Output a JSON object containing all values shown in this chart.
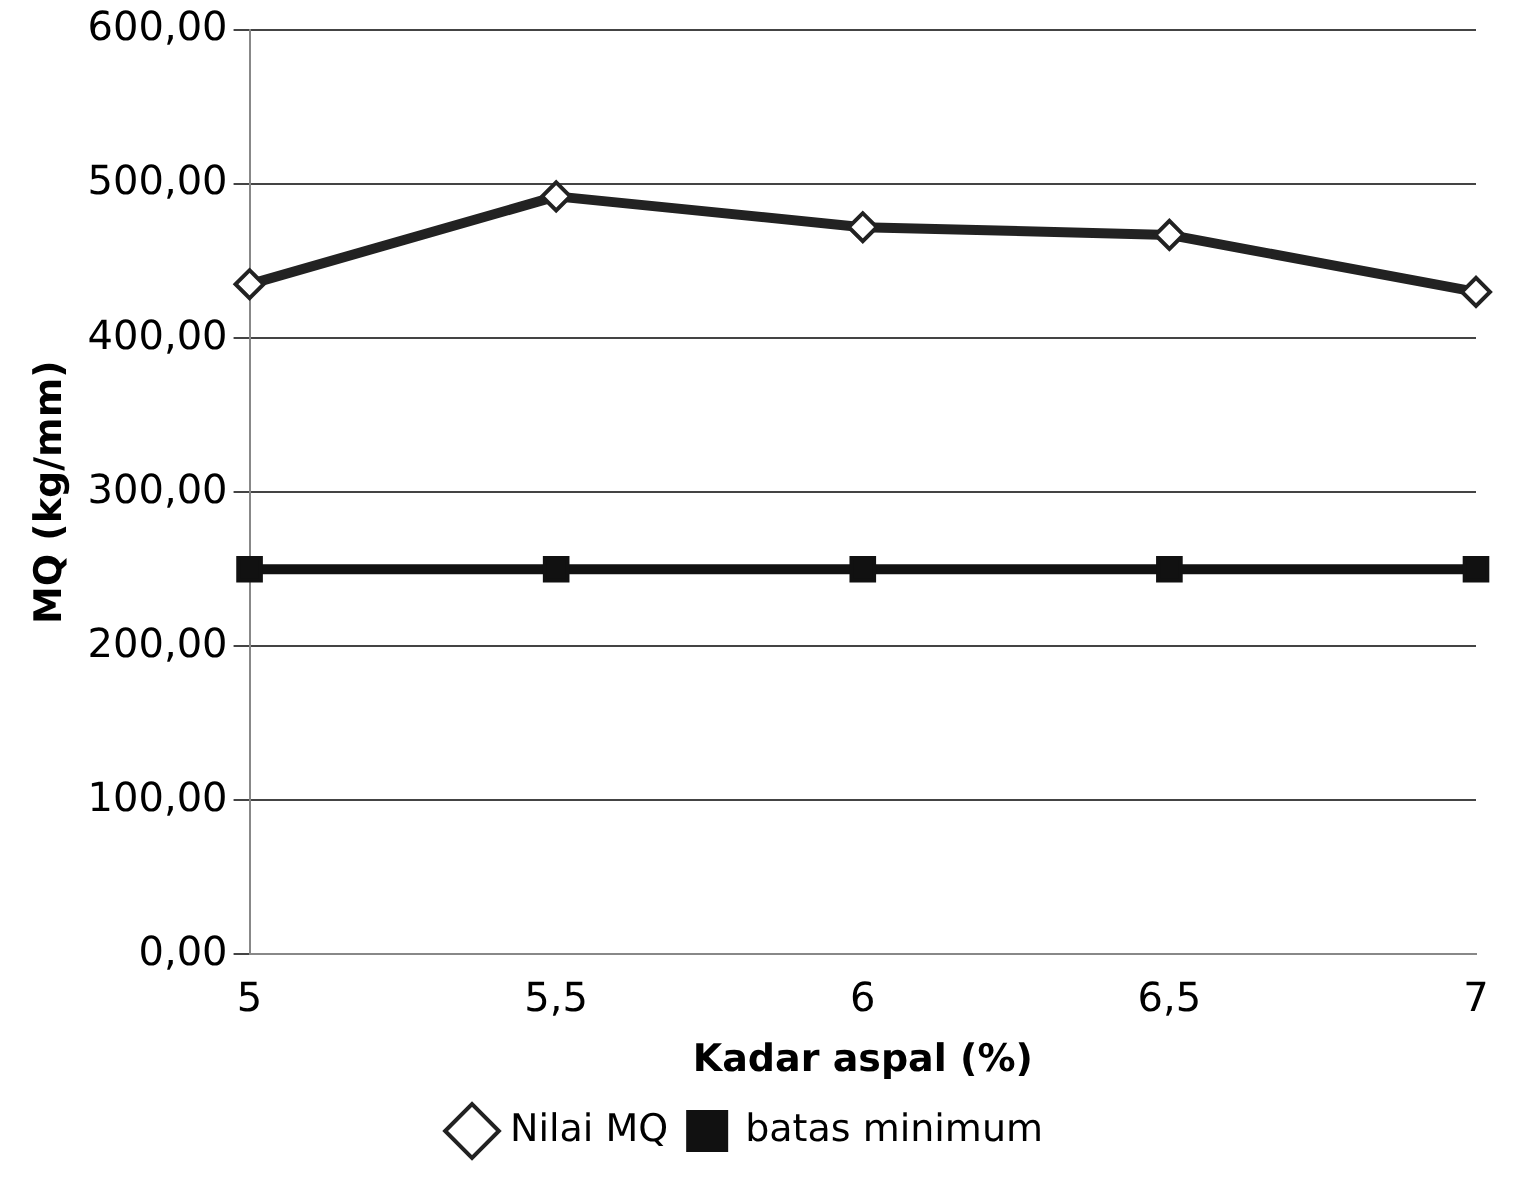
{
  "chart_data": {
    "type": "line",
    "xlabel": "Kadar aspal (%)",
    "ylabel": "MQ (kg/mm)",
    "categories": [
      "5",
      "5,5",
      "6",
      "6,5",
      "7"
    ],
    "series": [
      {
        "name": "Nilai MQ",
        "color": "#222222",
        "values": [
          435,
          492,
          472,
          467,
          430
        ],
        "marker": "diamond"
      },
      {
        "name": "batas minimum",
        "color": "#111111",
        "values": [
          250,
          250,
          250,
          250,
          250
        ],
        "marker": "square"
      }
    ],
    "ylim": [
      0,
      600
    ],
    "yticks": [
      {
        "value": 0,
        "label": "0,00"
      },
      {
        "value": 100,
        "label": "100,00"
      },
      {
        "value": 200,
        "label": "200,00"
      },
      {
        "value": 300,
        "label": "300,00"
      },
      {
        "value": 400,
        "label": "400,00"
      },
      {
        "value": 500,
        "label": "500,00"
      },
      {
        "value": 600,
        "label": "600,00"
      }
    ],
    "grid": "y",
    "legend": "bottom",
    "line_style": "solid"
  }
}
